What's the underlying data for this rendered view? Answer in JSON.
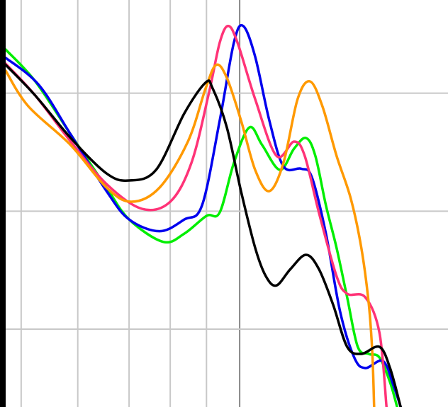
{
  "chart_data": {
    "type": "line",
    "title": "",
    "xlabel": "",
    "ylabel": "",
    "xlim": [
      0,
      100
    ],
    "ylim": [
      -26.6,
      7.9
    ],
    "grid": true,
    "x_gridlines": [
      3.5,
      16.3,
      27.9,
      37.2,
      45.4,
      52.9
    ],
    "emphasized_x_gridline": 52.9,
    "y_gridlines": [
      0,
      -10,
      -20
    ],
    "legend": "none",
    "colors": {
      "grid": "#c8c8c8",
      "grid_emphasis": "#888888",
      "left_border": "#000000"
    },
    "series": [
      {
        "color": "#00ee00",
        "points": [
          [
            0,
            3.7
          ],
          [
            6.7,
            1
          ],
          [
            14.7,
            -3.5
          ],
          [
            22.8,
            -8
          ],
          [
            27.9,
            -10.7
          ],
          [
            35.6,
            -12.6
          ],
          [
            40.4,
            -11.9
          ],
          [
            45.4,
            -10.4
          ],
          [
            48.4,
            -10.1
          ],
          [
            51.6,
            -5.9
          ],
          [
            55.1,
            -2.9
          ],
          [
            58,
            -4.4
          ],
          [
            62,
            -6.5
          ],
          [
            65.2,
            -4.7
          ],
          [
            67.9,
            -3.8
          ],
          [
            70,
            -5.3
          ],
          [
            72.4,
            -9.5
          ],
          [
            74.8,
            -13.1
          ],
          [
            77.2,
            -17.3
          ],
          [
            79.6,
            -21.5
          ],
          [
            82.1,
            -22.1
          ],
          [
            84.5,
            -22.4
          ],
          [
            86.9,
            -24.5
          ],
          [
            88.5,
            -26.6
          ]
        ]
      },
      {
        "color": "#0000ee",
        "points": [
          [
            0,
            3
          ],
          [
            7.5,
            0.7
          ],
          [
            14.7,
            -3.5
          ],
          [
            22.8,
            -8.3
          ],
          [
            27.9,
            -10.7
          ],
          [
            34.8,
            -11.7
          ],
          [
            40.4,
            -10.7
          ],
          [
            44.4,
            -9.5
          ],
          [
            48.4,
            -2.3
          ],
          [
            51.6,
            4.3
          ],
          [
            53.7,
            5.7
          ],
          [
            56.4,
            3.1
          ],
          [
            59.6,
            -2.3
          ],
          [
            62.8,
            -6.2
          ],
          [
            66.8,
            -6.4
          ],
          [
            69.2,
            -7.1
          ],
          [
            72.4,
            -11.9
          ],
          [
            75.6,
            -18.5
          ],
          [
            78.8,
            -22.4
          ],
          [
            81.3,
            -23.3
          ],
          [
            85.3,
            -22.7
          ],
          [
            87.7,
            -24.8
          ],
          [
            89.3,
            -26.6
          ]
        ]
      },
      {
        "color": "#ff3377",
        "points": [
          [
            0,
            2.5
          ],
          [
            6.7,
            -0.2
          ],
          [
            14.7,
            -4.1
          ],
          [
            22.8,
            -7.7
          ],
          [
            30.8,
            -9.8
          ],
          [
            37.2,
            -9.2
          ],
          [
            42,
            -5.9
          ],
          [
            46,
            0.1
          ],
          [
            48.4,
            4.3
          ],
          [
            50.3,
            5.7
          ],
          [
            52.4,
            4.3
          ],
          [
            56.4,
            -0.5
          ],
          [
            61.2,
            -5.3
          ],
          [
            65.2,
            -4.1
          ],
          [
            67.6,
            -5.3
          ],
          [
            70.8,
            -10.1
          ],
          [
            74.8,
            -15.5
          ],
          [
            77.2,
            -17
          ],
          [
            81.3,
            -17.3
          ],
          [
            84.5,
            -20.3
          ],
          [
            86.1,
            -26.6
          ]
        ]
      },
      {
        "color": "#ff9900",
        "points": [
          [
            0,
            1.9
          ],
          [
            5.1,
            -1.1
          ],
          [
            14.7,
            -4.4
          ],
          [
            22.8,
            -8
          ],
          [
            28.4,
            -9.2
          ],
          [
            34.8,
            -8
          ],
          [
            41.2,
            -4.1
          ],
          [
            45.2,
            0.4
          ],
          [
            47.6,
            2.4
          ],
          [
            50,
            1.3
          ],
          [
            53.2,
            -2.3
          ],
          [
            56.4,
            -6.5
          ],
          [
            59.6,
            -8.3
          ],
          [
            62.8,
            -5.9
          ],
          [
            66,
            -0.5
          ],
          [
            68.8,
            1
          ],
          [
            71.6,
            -1.1
          ],
          [
            74.8,
            -5.3
          ],
          [
            78,
            -8.9
          ],
          [
            80.4,
            -13.1
          ],
          [
            82.1,
            -17.9
          ],
          [
            82.9,
            -22.1
          ],
          [
            83.3,
            -26.6
          ]
        ]
      },
      {
        "color": "#000000",
        "points": [
          [
            0,
            2.4
          ],
          [
            6.7,
            -0.2
          ],
          [
            14.7,
            -3.8
          ],
          [
            22.8,
            -6.8
          ],
          [
            27.9,
            -7.4
          ],
          [
            34,
            -6.5
          ],
          [
            40.4,
            -1.7
          ],
          [
            45.2,
            0.9
          ],
          [
            46.8,
            0.4
          ],
          [
            50,
            -2.9
          ],
          [
            53.2,
            -8.3
          ],
          [
            56.4,
            -13.1
          ],
          [
            58.8,
            -15.5
          ],
          [
            61.2,
            -16.3
          ],
          [
            64.4,
            -14.9
          ],
          [
            67.9,
            -13.7
          ],
          [
            70.8,
            -14.9
          ],
          [
            74,
            -17.9
          ],
          [
            77.2,
            -21.5
          ],
          [
            80.4,
            -22.1
          ],
          [
            84.5,
            -21.5
          ],
          [
            86.9,
            -23.3
          ],
          [
            89.3,
            -26.6
          ]
        ]
      }
    ]
  }
}
